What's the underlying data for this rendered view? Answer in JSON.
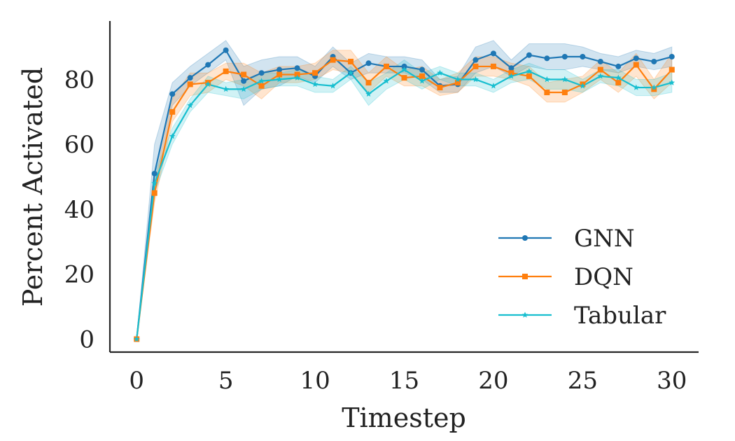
{
  "chart_data": {
    "type": "line",
    "title": "",
    "xlabel": "Timestep",
    "ylabel": "Percent Activated",
    "xlim": [
      -1.5,
      31.5
    ],
    "ylim": [
      -4,
      98
    ],
    "xticks": [
      0,
      5,
      10,
      15,
      20,
      25,
      30
    ],
    "yticks": [
      0,
      20,
      40,
      60,
      80
    ],
    "grid": false,
    "legend_position": "lower-right",
    "x": [
      0,
      1,
      2,
      3,
      4,
      5,
      6,
      7,
      8,
      9,
      10,
      11,
      12,
      13,
      14,
      15,
      16,
      17,
      18,
      19,
      20,
      21,
      22,
      23,
      24,
      25,
      26,
      27,
      28,
      29,
      30
    ],
    "series": [
      {
        "name": "GNN",
        "color": "#1f77b4",
        "marker": "circle",
        "values": [
          0,
          51,
          75.5,
          80.5,
          84.5,
          89,
          79.5,
          82,
          83,
          83.5,
          81,
          87,
          82,
          85,
          84,
          84,
          83,
          78,
          78.5,
          86,
          88,
          83.5,
          87.5,
          86.5,
          87,
          87,
          85.5,
          84,
          86.5,
          85.5,
          87
        ],
        "lower": [
          0,
          44,
          72,
          78,
          82,
          86,
          72,
          77,
          78,
          81,
          79,
          84,
          80,
          82,
          82,
          82,
          80,
          76,
          76,
          82,
          84,
          81,
          84,
          83,
          83,
          84,
          83,
          82,
          84,
          83,
          84
        ],
        "upper": [
          0,
          60,
          79,
          84,
          88,
          92,
          84,
          86,
          87,
          87,
          84,
          90,
          85,
          88,
          87,
          87,
          86,
          80,
          81,
          90,
          92,
          86,
          91,
          91,
          91,
          90,
          88,
          87,
          89,
          88,
          90
        ]
      },
      {
        "name": "DQN",
        "color": "#ff7f0e",
        "marker": "square",
        "values": [
          0,
          45,
          70,
          78.5,
          79,
          82.5,
          81.5,
          78,
          81.5,
          81.5,
          82,
          86,
          85.5,
          79,
          84,
          80.5,
          81,
          77.5,
          79,
          84,
          84,
          82,
          81,
          76,
          76,
          78.5,
          83,
          79,
          84.5,
          77,
          83
        ],
        "lower": [
          0,
          42,
          67,
          75,
          76,
          80,
          78,
          74,
          79,
          79,
          80,
          83,
          82,
          76,
          81,
          78,
          78,
          75,
          76,
          81,
          81,
          80,
          78,
          73,
          73,
          76,
          80,
          76,
          81,
          74,
          79
        ],
        "upper": [
          0,
          48,
          74,
          82,
          82,
          85,
          85,
          82,
          84,
          84,
          85,
          89,
          89,
          82,
          87,
          83,
          84,
          80,
          82,
          87,
          87,
          85,
          84,
          79,
          80,
          81,
          86,
          82,
          88,
          80,
          88
        ]
      },
      {
        "name": "Tabular",
        "color": "#17becf",
        "marker": "star",
        "values": [
          0,
          48,
          62.5,
          72,
          78.5,
          77,
          77,
          79.5,
          80,
          80.5,
          78.5,
          78,
          82,
          75.5,
          79.5,
          83,
          79.5,
          82,
          80,
          80,
          78,
          81,
          82.5,
          80,
          80,
          78,
          81,
          80.5,
          77.5,
          77.5,
          79
        ],
        "lower": [
          0,
          45,
          60,
          70,
          76,
          75,
          74,
          77,
          78,
          78,
          76,
          76,
          80,
          72,
          77,
          80,
          77,
          80,
          78,
          78,
          76,
          79,
          80,
          77,
          77,
          76,
          79,
          78,
          75,
          75,
          76
        ],
        "upper": [
          0,
          51,
          65,
          74,
          81,
          79,
          80,
          82,
          82,
          83,
          81,
          80,
          84,
          79,
          82,
          86,
          82,
          84,
          82,
          82,
          80,
          83,
          85,
          83,
          83,
          80,
          83,
          83,
          80,
          80,
          82
        ]
      }
    ]
  }
}
